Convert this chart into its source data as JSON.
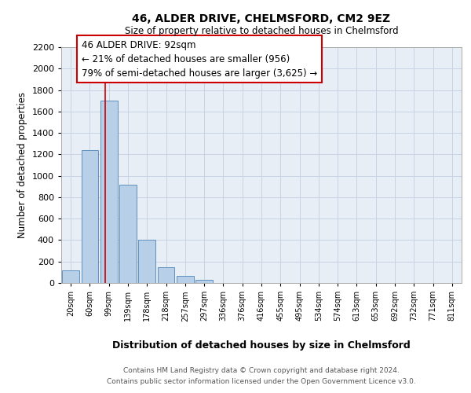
{
  "title1": "46, ALDER DRIVE, CHELMSFORD, CM2 9EZ",
  "title2": "Size of property relative to detached houses in Chelmsford",
  "xlabel": "Distribution of detached houses by size in Chelmsford",
  "ylabel": "Number of detached properties",
  "footer1": "Contains HM Land Registry data © Crown copyright and database right 2024.",
  "footer2": "Contains public sector information licensed under the Open Government Licence v3.0.",
  "bar_labels": [
    "20sqm",
    "60sqm",
    "99sqm",
    "139sqm",
    "178sqm",
    "218sqm",
    "257sqm",
    "297sqm",
    "336sqm",
    "376sqm",
    "416sqm",
    "455sqm",
    "495sqm",
    "534sqm",
    "574sqm",
    "613sqm",
    "653sqm",
    "692sqm",
    "732sqm",
    "771sqm",
    "811sqm"
  ],
  "bar_values": [
    115,
    1240,
    1700,
    920,
    400,
    150,
    65,
    30,
    0,
    0,
    0,
    0,
    0,
    0,
    0,
    0,
    0,
    0,
    0,
    0,
    0
  ],
  "bar_color": "#b8cfe8",
  "bar_edge_color": "#6090c0",
  "grid_color": "#c8d4e4",
  "background_color": "#e8eef6",
  "annotation_line1": "46 ALDER DRIVE: 92sqm",
  "annotation_line2": "← 21% of detached houses are smaller (956)",
  "annotation_line3": "79% of semi-detached houses are larger (3,625) →",
  "annotation_box_color": "#cc0000",
  "vline_color": "#cc0000",
  "vline_x": 1.82,
  "ylim": [
    0,
    2200
  ],
  "yticks": [
    0,
    200,
    400,
    600,
    800,
    1000,
    1200,
    1400,
    1600,
    1800,
    2000,
    2200
  ]
}
